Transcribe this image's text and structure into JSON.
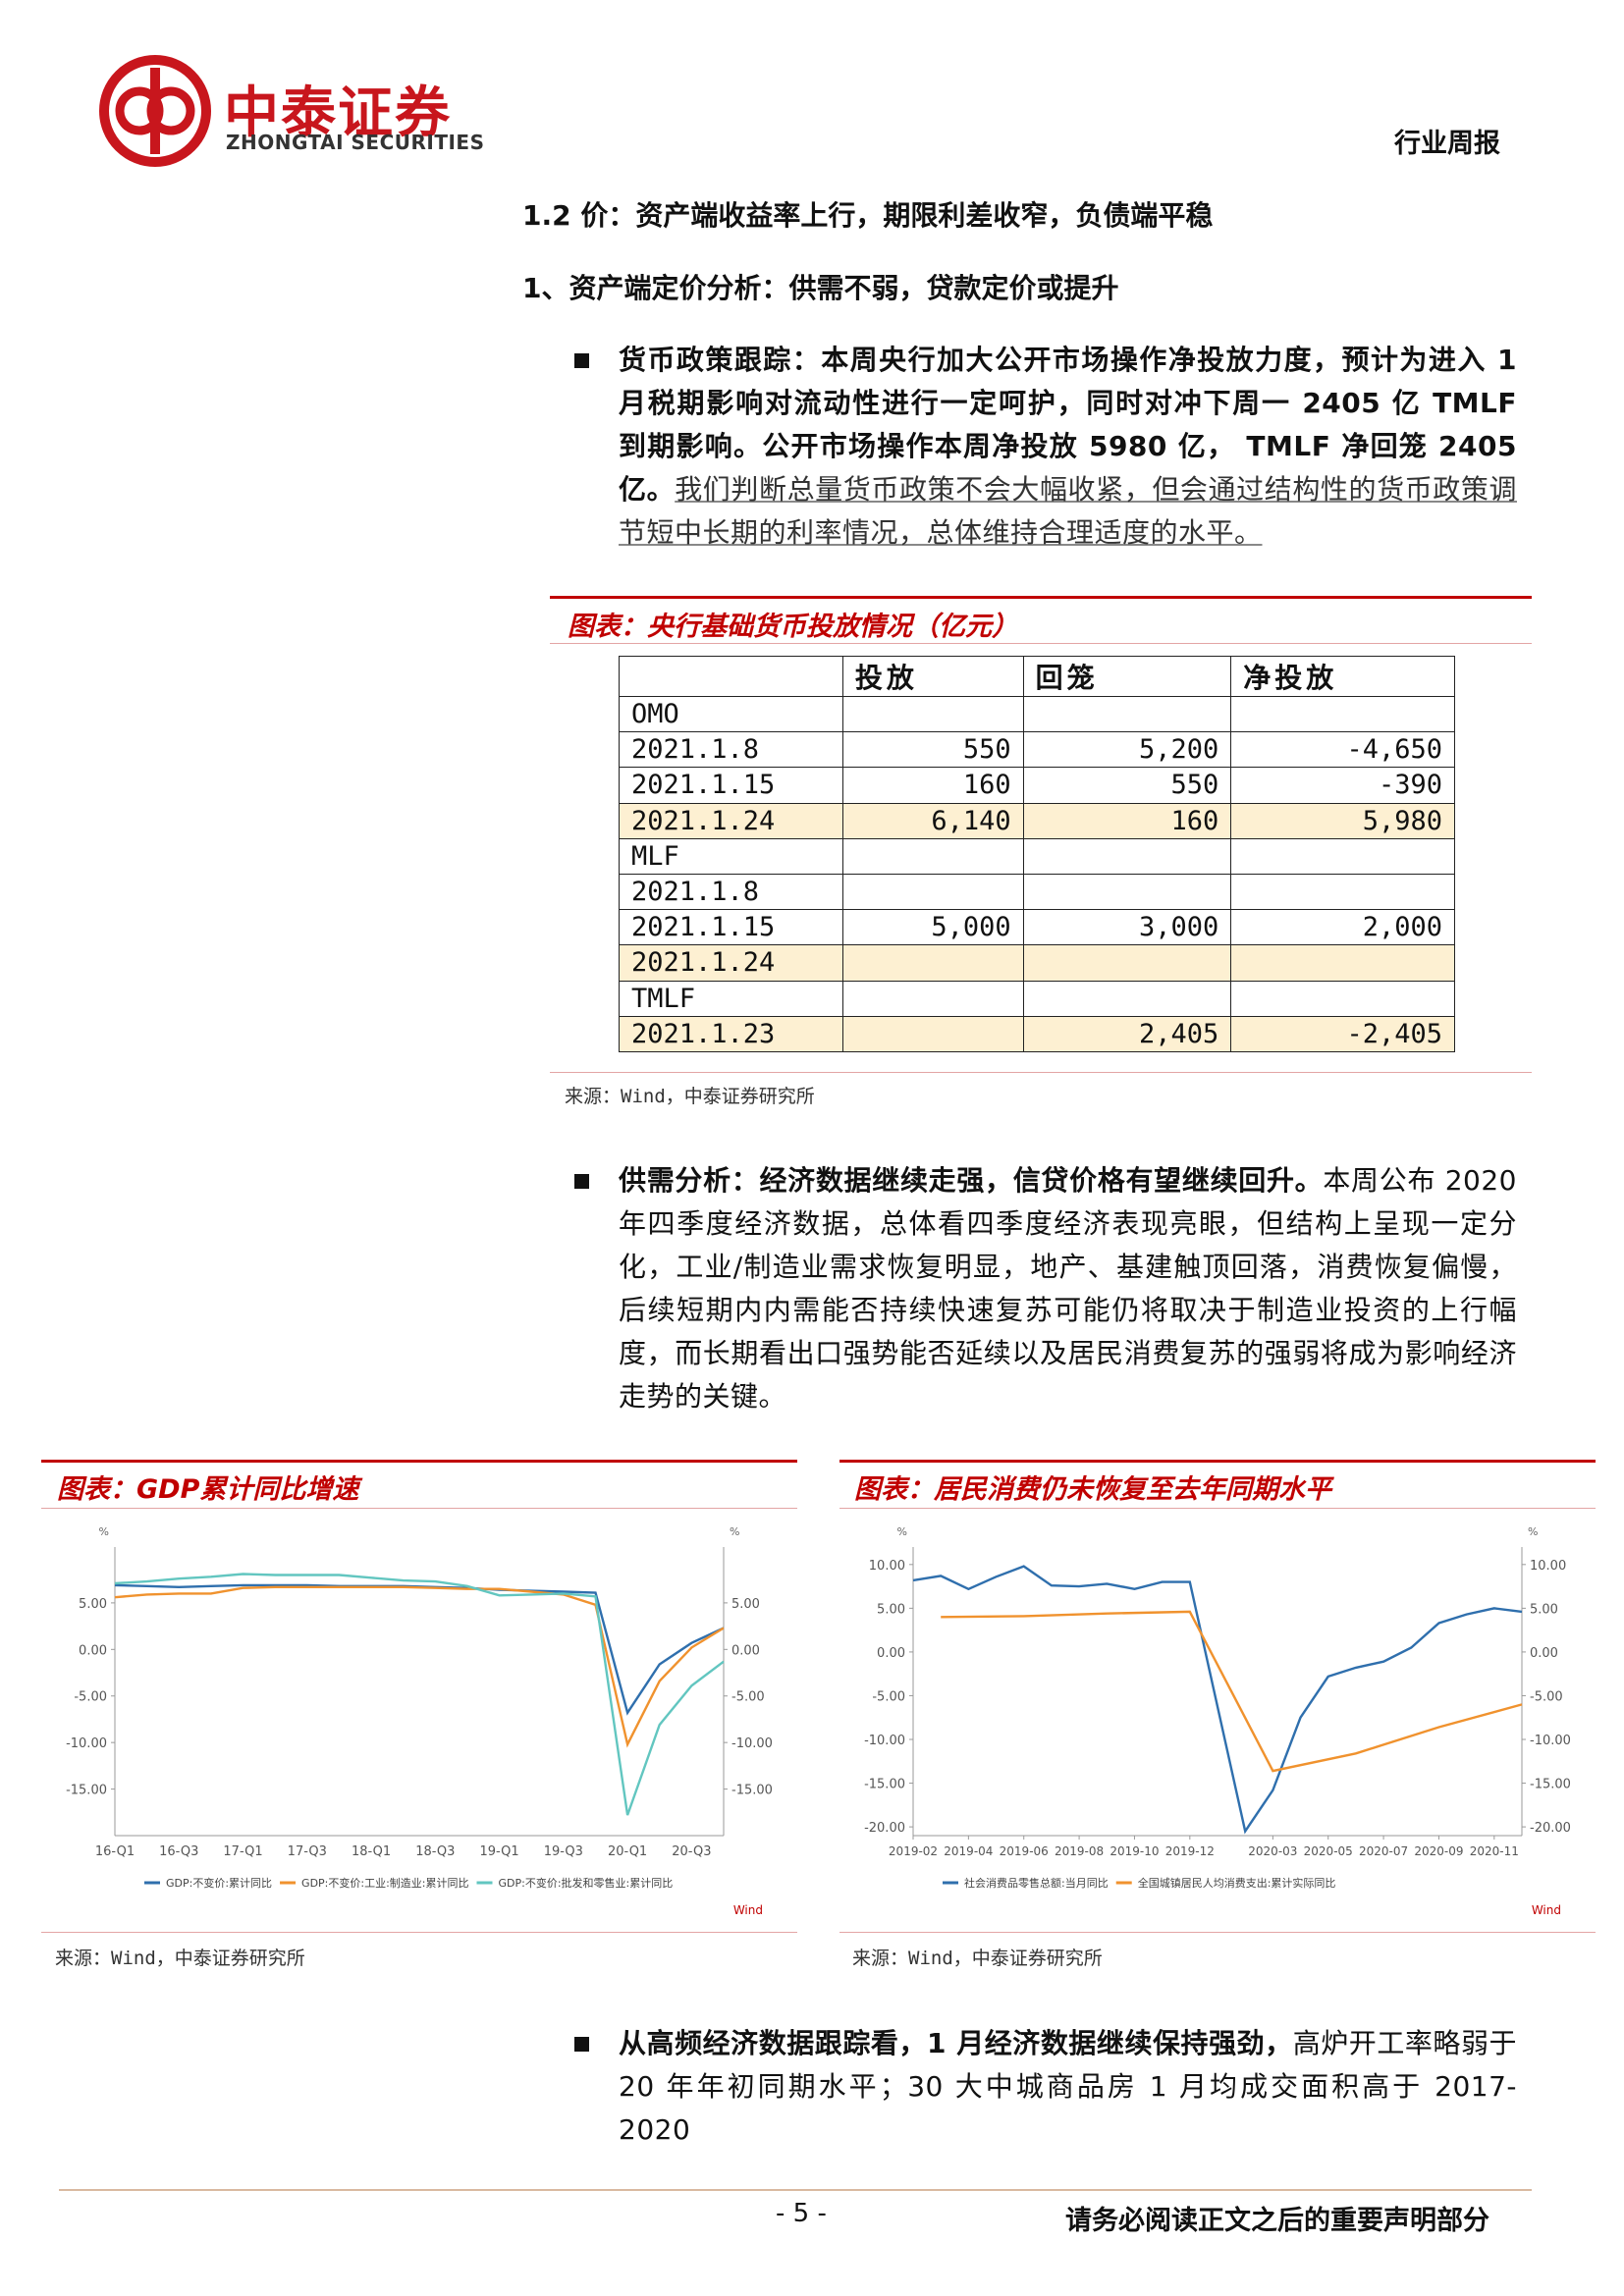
{
  "header": {
    "brand_cn": "中泰证券",
    "brand_en": "ZHONGTAI SECURITIES",
    "report_type": "行业周报"
  },
  "section_title": "1.2 价：资产端收益率上行，期限利差收窄，负债端平稳",
  "subsection_title": "1、资产端定价分析：供需不弱，贷款定价或提升",
  "bullets": [
    {
      "bold": "货币政策跟踪：本周央行加大公开市场操作净投放力度，预计为进入 1 月税期影响对流动性进行一定呵护，同时对冲下周一 2405 亿 TMLF 到期影响。公开市场操作本周净投放 5980 亿， TMLF 净回笼 2405 亿。",
      "text": "我们判断总量货币政策不会大幅收紧，但会通过结构性的货币政策调节短中长期的利率情况，总体维持合理适度的水平。"
    },
    {
      "bold": "供需分析：经济数据继续走强，信贷价格有望继续回升。",
      "text": "本周公布 2020 年四季度经济数据，总体看四季度经济表现亮眼，但结构上呈现一定分化，工业/制造业需求恢复明显，地产、基建触顶回落，消费恢复偏慢，后续短期内内需能否持续快速复苏可能仍将取决于制造业投资的上行幅度，而长期看出口强势能否延续以及居民消费复苏的强弱将成为影响经济走势的关键。"
    },
    {
      "bold": "从高频经济数据跟踪看，1 月经济数据继续保持强劲，",
      "text": "高炉开工率略弱于 20 年年初同期水平；30 大中城商品房 1 月均成交面积高于 2017-2020"
    }
  ],
  "table": {
    "title": "图表：央行基础货币投放情况（亿元）",
    "columns": [
      "投放",
      "回笼",
      "净投放"
    ],
    "rows": [
      {
        "label": "OMO"
      },
      {
        "label": "2021.1.8",
        "cells": [
          "550",
          "5,200",
          "-4,650"
        ]
      },
      {
        "label": "2021.1.15",
        "cells": [
          "160",
          "550",
          "-390"
        ]
      },
      {
        "label": "2021.1.24",
        "cells": [
          "6,140",
          "160",
          "5,980"
        ],
        "highlighted": true
      },
      {
        "label": "MLF"
      },
      {
        "label": "2021.1.8"
      },
      {
        "label": "2021.1.15",
        "cells": [
          "5,000",
          "3,000",
          "2,000"
        ]
      },
      {
        "label": "2021.1.24",
        "highlighted": true
      },
      {
        "label": "TMLF"
      },
      {
        "label": "2021.1.23",
        "cells": [
          null,
          "2,405",
          "-2,405"
        ],
        "highlighted": true
      }
    ],
    "source": "来源：Wind，中泰证券研究所"
  },
  "charts": [
    {
      "type": "line",
      "title": "图表：GDP累计同比增速",
      "y_unit": "%",
      "source_label": "Wind",
      "source": "来源：Wind，中泰证券研究所",
      "categories": [
        "16-Q1",
        null,
        "16-Q3",
        null,
        "17-Q1",
        null,
        "17-Q3",
        null,
        "18-Q1",
        null,
        "18-Q3",
        null,
        "19-Q1",
        null,
        "19-Q3",
        null,
        "20-Q1",
        null,
        "20-Q3",
        null
      ],
      "ylim": [
        -20,
        11
      ],
      "yticks": [
        {
          "value": 5,
          "label": "5.00"
        },
        {
          "value": 0,
          "label": "0.00"
        },
        {
          "value": -5,
          "label": "-5.00"
        },
        {
          "value": -10,
          "label": "-10.00"
        },
        {
          "value": -15,
          "label": "-15.00"
        }
      ],
      "series": [
        {
          "name": "GDP:不变价:累计同比",
          "color": "#2f6fad",
          "values": [
            6.9,
            6.8,
            6.7,
            6.8,
            6.9,
            6.9,
            6.9,
            6.8,
            6.8,
            6.8,
            6.7,
            6.6,
            6.4,
            6.3,
            6.2,
            6.1,
            -6.8,
            -1.6,
            0.7,
            2.3
          ]
        },
        {
          "name": "GDP:不变价:工业:制造业:累计同比",
          "color": "#f0922e",
          "values": [
            5.6,
            5.9,
            6.0,
            6.0,
            6.6,
            6.7,
            6.7,
            6.7,
            6.7,
            6.7,
            6.6,
            6.5,
            6.5,
            6.2,
            5.9,
            4.8,
            -10.2,
            -3.4,
            0.2,
            2.3
          ]
        },
        {
          "name": "GDP:不变价:批发和零售业:累计同比",
          "color": "#62c6c0",
          "values": [
            7.1,
            7.3,
            7.6,
            7.8,
            8.1,
            8.0,
            8.0,
            8.0,
            7.7,
            7.4,
            7.3,
            6.8,
            5.8,
            5.9,
            6.0,
            5.7,
            -17.8,
            -8.1,
            -3.9,
            -1.3
          ]
        }
      ]
    },
    {
      "type": "line",
      "title": "图表：居民消费仍未恢复至去年同期水平",
      "y_unit": "%",
      "source_label": "Wind",
      "source": "来源：Wind，中泰证券研究所",
      "xlim": [
        "2019-02",
        "2020-12"
      ],
      "xticks": [
        "2019-02",
        "2019-04",
        "2019-06",
        "2019-08",
        "2019-10",
        "2019-12",
        "2020-03",
        "2020-05",
        "2020-07",
        "2020-09",
        "2020-11"
      ],
      "ylim": [
        -21,
        12
      ],
      "yticks": [
        {
          "value": 10,
          "label": "10.00"
        },
        {
          "value": 5,
          "label": "5.00"
        },
        {
          "value": 0,
          "label": "0.00"
        },
        {
          "value": -5,
          "label": "-5.00"
        },
        {
          "value": -10,
          "label": "-10.00"
        },
        {
          "value": -15,
          "label": "-15.00"
        },
        {
          "value": -20,
          "label": "-20.00"
        }
      ],
      "series": [
        {
          "name": "社会消费品零售总额:当月同比",
          "color": "#2f6fad",
          "x": [
            "2019-02",
            "2019-03",
            "2019-04",
            "2019-05",
            "2019-06",
            "2019-07",
            "2019-08",
            "2019-09",
            "2019-10",
            "2019-11",
            "2019-12",
            "2020-02",
            "2020-03",
            "2020-04",
            "2020-05",
            "2020-06",
            "2020-07",
            "2020-08",
            "2020-09",
            "2020-10",
            "2020-11",
            "2020-12"
          ],
          "values": [
            8.2,
            8.7,
            7.2,
            8.6,
            9.8,
            7.6,
            7.5,
            7.8,
            7.2,
            8.0,
            8.0,
            -20.5,
            -15.8,
            -7.5,
            -2.8,
            -1.8,
            -1.1,
            0.5,
            3.3,
            4.3,
            5.0,
            4.6
          ]
        },
        {
          "name": "全国城镇居民人均消费支出:累计实际同比",
          "color": "#f0922e",
          "x": [
            "2019-03",
            "2019-06",
            "2019-09",
            "2019-12",
            "2020-03",
            "2020-06",
            "2020-09",
            "2020-12"
          ],
          "values": [
            4.0,
            4.1,
            4.4,
            4.6,
            -13.6,
            -11.6,
            -8.6,
            -6.0
          ]
        }
      ]
    }
  ],
  "footer": {
    "page": "- 5 -",
    "disclaimer": "请务必阅读正文之后的重要声明部分"
  }
}
